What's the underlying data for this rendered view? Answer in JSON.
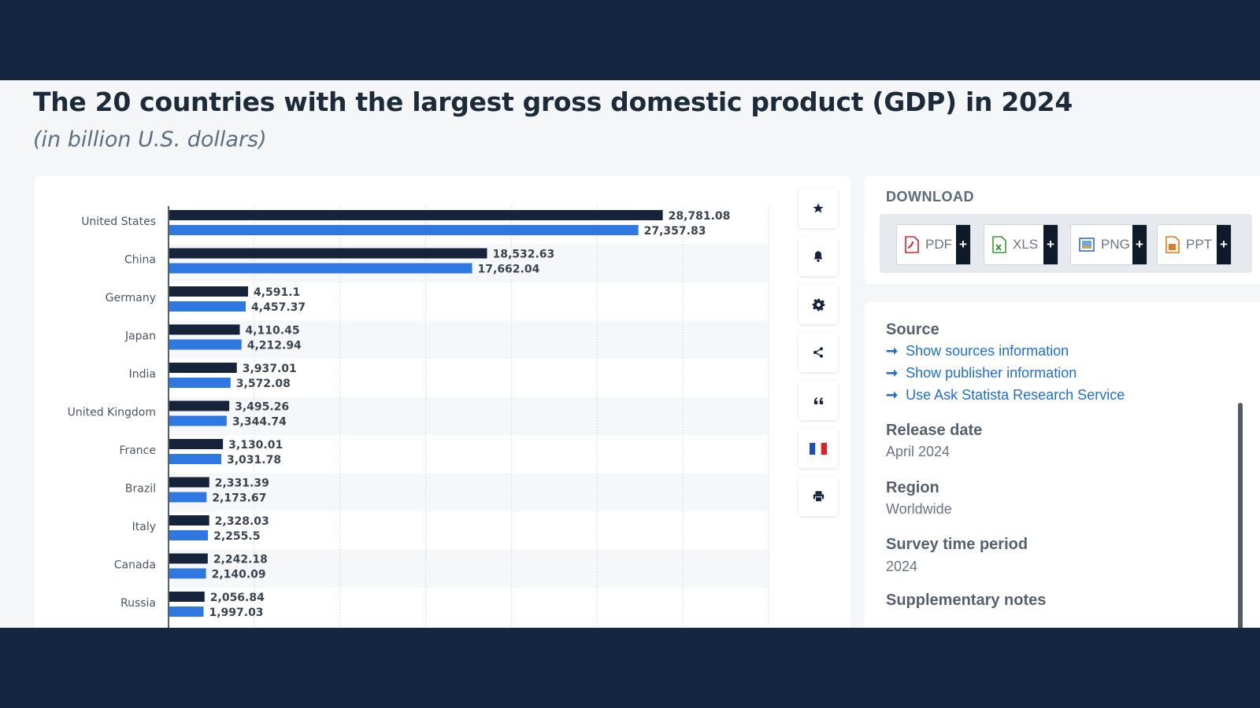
{
  "title": "The 20 countries with the largest gross domestic product (GDP) in 2024",
  "subtitle": "(in billion U.S. dollars)",
  "colors": {
    "series_primary": "#15233b",
    "series_secondary": "#2f78e2",
    "link": "#1f6fd6"
  },
  "chart_data": {
    "type": "bar",
    "orientation": "horizontal",
    "categories": [
      "United States",
      "China",
      "Germany",
      "Japan",
      "India",
      "United Kingdom",
      "France",
      "Brazil",
      "Italy",
      "Canada",
      "Russia"
    ],
    "series": [
      {
        "values": [
          28781.08,
          18532.63,
          4591.1,
          4110.45,
          3937.01,
          3495.26,
          3130.01,
          2331.39,
          2328.03,
          2242.18,
          2056.84
        ],
        "labels": [
          "28,781.08",
          "18,532.63",
          "4,591.1",
          "4,110.45",
          "3,937.01",
          "3,495.26",
          "3,130.01",
          "2,331.39",
          "2,328.03",
          "2,242.18",
          "2,056.84"
        ]
      },
      {
        "values": [
          27357.83,
          17662.04,
          4457.37,
          4212.94,
          3572.08,
          3344.74,
          3031.78,
          2173.67,
          2255.5,
          2140.09,
          1997.03
        ],
        "labels": [
          "27,357.83",
          "17,662.04",
          "4,457.37",
          "4,212.94",
          "3,572.08",
          "3,344.74",
          "3,031.78",
          "2,173.67",
          "2,255.5",
          "2,140.09",
          "1,997.03"
        ]
      }
    ],
    "xlim": [
      0,
      35000
    ],
    "grid": true
  },
  "tools": [
    {
      "name": "star-icon"
    },
    {
      "name": "bell-icon"
    },
    {
      "name": "gear-icon"
    },
    {
      "name": "share-icon"
    },
    {
      "name": "quote-icon"
    },
    {
      "name": "french-flag-icon"
    },
    {
      "name": "print-icon"
    }
  ],
  "download": {
    "label": "DOWNLOAD",
    "buttons": [
      {
        "label": "PDF",
        "icon": "pdf-file-icon",
        "color": "#d8232a"
      },
      {
        "label": "XLS",
        "icon": "xls-file-icon",
        "color": "#3a9a3a"
      },
      {
        "label": "PNG",
        "icon": "png-file-icon",
        "color": "#2d6fbf"
      },
      {
        "label": "PPT",
        "icon": "ppt-file-icon",
        "color": "#e07a1f"
      }
    ]
  },
  "info": {
    "source_heading": "Source",
    "links": [
      "Show sources information",
      "Show publisher information",
      "Use Ask Statista Research Service"
    ],
    "release_heading": "Release date",
    "release_value": "April 2024",
    "region_heading": "Region",
    "region_value": "Worldwide",
    "survey_heading": "Survey time period",
    "survey_value": "2024",
    "supp_heading": "Supplementary notes"
  }
}
